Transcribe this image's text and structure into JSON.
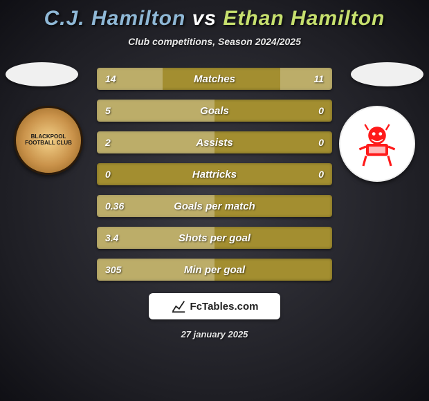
{
  "title": {
    "player1_name": "C.J. Hamilton",
    "vs_word": "vs",
    "player2_name": "Ethan Hamilton",
    "player1_color": "#8fb8d6",
    "vs_color": "#ffffff",
    "player2_color": "#c7e06e"
  },
  "subtitle": "Club competitions, Season 2024/2025",
  "crest_left_text": "BLACKPOOL\nFOOTBALL CLUB",
  "stats": {
    "bar_bg": "#a38e30",
    "fill_color_rgba": "rgba(255,255,255,0.28)",
    "rows": [
      {
        "label": "Matches",
        "left": "14",
        "right": "11",
        "left_pct": 28,
        "right_pct": 22
      },
      {
        "label": "Goals",
        "left": "5",
        "right": "0",
        "left_pct": 50,
        "right_pct": 0
      },
      {
        "label": "Assists",
        "left": "2",
        "right": "0",
        "left_pct": 50,
        "right_pct": 0
      },
      {
        "label": "Hattricks",
        "left": "0",
        "right": "0",
        "left_pct": 0,
        "right_pct": 0
      },
      {
        "label": "Goals per match",
        "left": "0.36",
        "right": "",
        "left_pct": 50,
        "right_pct": 0
      },
      {
        "label": "Shots per goal",
        "left": "3.4",
        "right": "",
        "left_pct": 50,
        "right_pct": 0
      },
      {
        "label": "Min per goal",
        "left": "305",
        "right": "",
        "left_pct": 50,
        "right_pct": 0
      }
    ]
  },
  "footer_brand": "FcTables.com",
  "date": "27 january 2025"
}
